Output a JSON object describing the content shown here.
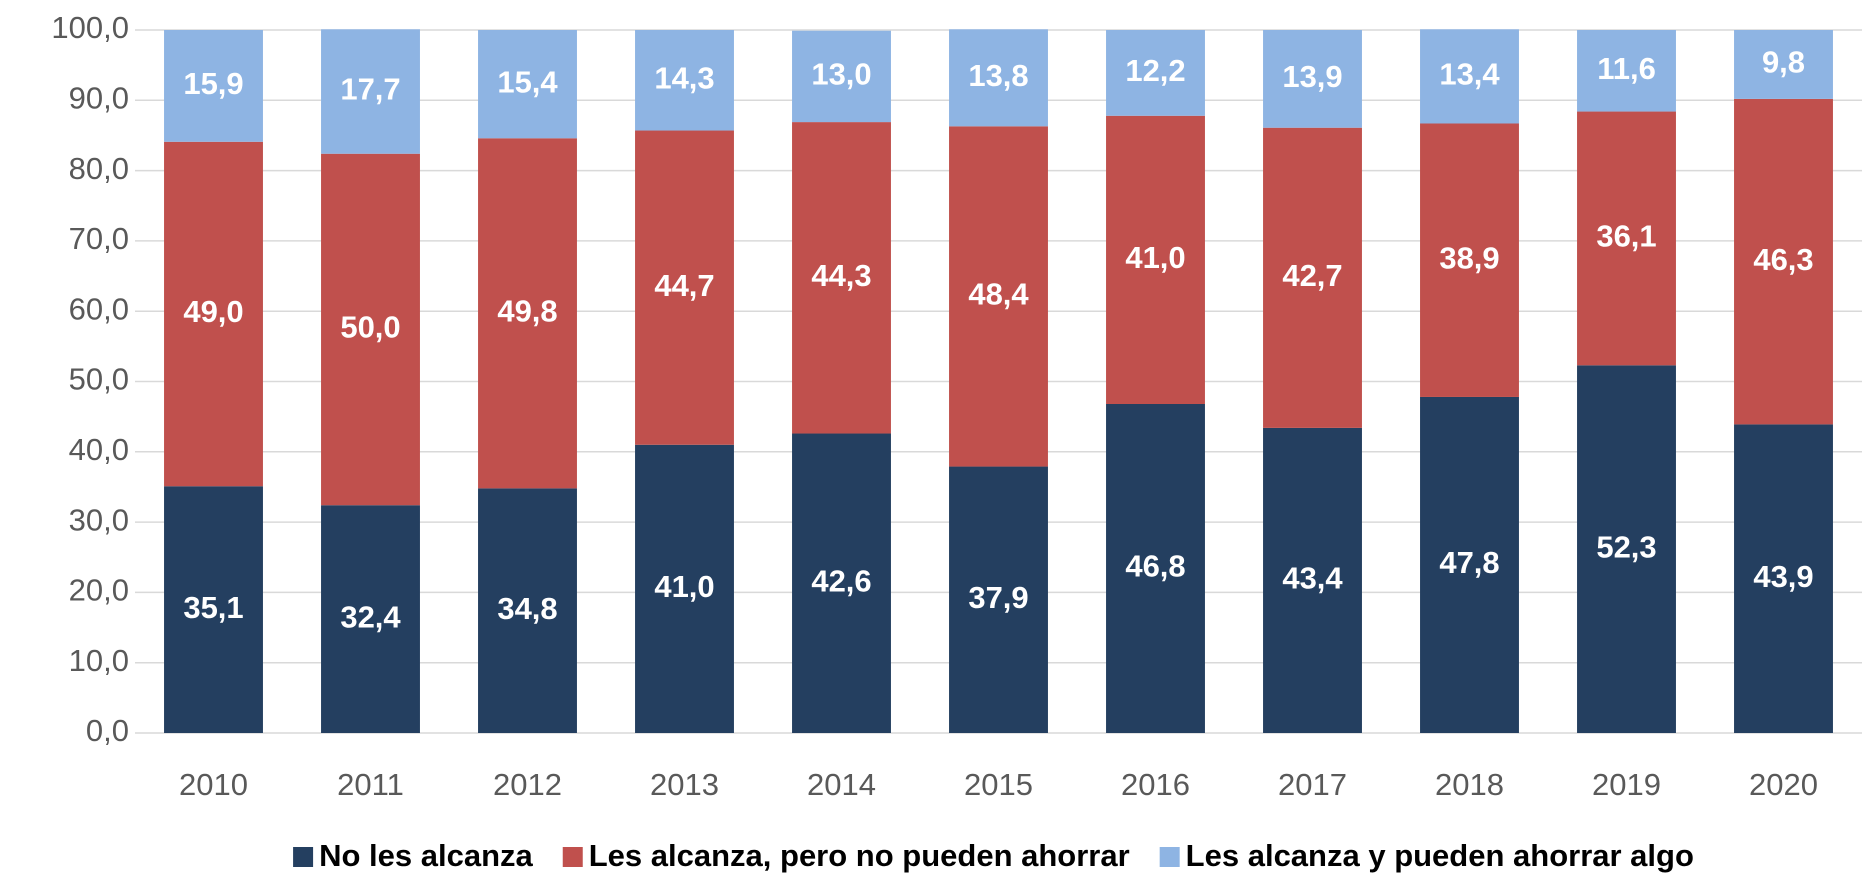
{
  "chart_data": {
    "type": "stacked_bar",
    "categories": [
      "2010",
      "2011",
      "2012",
      "2013",
      "2014",
      "2015",
      "2016",
      "2017",
      "2018",
      "2019",
      "2020"
    ],
    "series": [
      {
        "name": "No les alcanza",
        "color": "#243f60",
        "values": [
          35.1,
          32.4,
          34.8,
          41.0,
          42.6,
          37.9,
          46.8,
          43.4,
          47.8,
          52.3,
          43.9
        ],
        "value_labels": [
          "35,1",
          "32,4",
          "34,8",
          "41,0",
          "42,6",
          "37,9",
          "46,8",
          "43,4",
          "47,8",
          "52,3",
          "43,9"
        ]
      },
      {
        "name": "Les alcanza, pero no pueden ahorrar",
        "color": "#c0504d",
        "values": [
          49.0,
          50.0,
          49.8,
          44.7,
          44.3,
          48.4,
          41.0,
          42.7,
          38.9,
          36.1,
          46.3
        ],
        "value_labels": [
          "49,0",
          "50,0",
          "49,8",
          "44,7",
          "44,3",
          "48,4",
          "41,0",
          "42,7",
          "38,9",
          "36,1",
          "46,3"
        ]
      },
      {
        "name": "Les alcanza y pueden ahorrar algo",
        "color": "#8eb4e3",
        "values": [
          15.9,
          17.7,
          15.4,
          14.3,
          13.0,
          13.8,
          12.2,
          13.9,
          13.4,
          11.6,
          9.8
        ],
        "value_labels": [
          "15,9",
          "17,7",
          "15,4",
          "14,3",
          "13,0",
          "13,8",
          "12,2",
          "13,9",
          "13,4",
          "11,6",
          "9,8"
        ]
      }
    ],
    "ylim": [
      0,
      100
    ],
    "yticks": [
      {
        "value": 0,
        "label": "0,0"
      },
      {
        "value": 10,
        "label": "10,0"
      },
      {
        "value": 20,
        "label": "20,0"
      },
      {
        "value": 30,
        "label": "30,0"
      },
      {
        "value": 40,
        "label": "40,0"
      },
      {
        "value": 50,
        "label": "50,0"
      },
      {
        "value": 60,
        "label": "60,0"
      },
      {
        "value": 70,
        "label": "70,0"
      },
      {
        "value": 80,
        "label": "80,0"
      },
      {
        "value": 90,
        "label": "90,0"
      },
      {
        "value": 100,
        "label": "100,0"
      }
    ],
    "grid": true,
    "legend": "bottom"
  }
}
